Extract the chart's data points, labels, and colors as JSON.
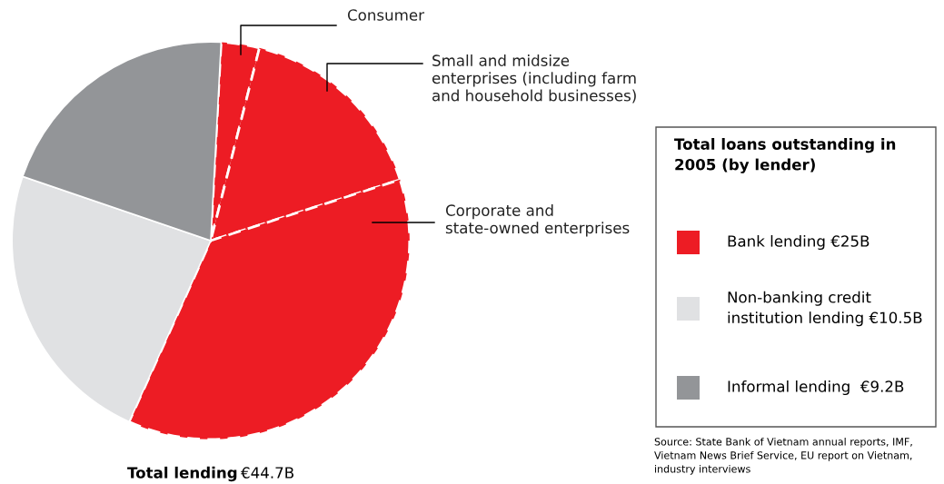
{
  "chart_data": {
    "type": "pie",
    "categories": [
      "Consumer",
      "Small and midsize\nenterprises (including farm\nand household businesses)",
      "Corporate and\nstate-owned enterprises",
      "Non-banking credit\ninstitution lending €10.5B",
      "Informal lending  €9.2B"
    ],
    "values": [
      3.1,
      16.1,
      36.7,
      23.5,
      20.6
    ],
    "colors": [
      "#ed1c24",
      "#ed1c24",
      "#ed1c24",
      "#e0e1e3",
      "#939598"
    ],
    "legend": "right",
    "legend_title": "Total loans outstanding in\n2005 (by lender)",
    "annotations": [
      "Bank lending €25B",
      "Total lending",
      "€44.7B",
      "Source: State Bank of Vietnam annual reports, IMF,\nVietnam News Brief Service, EU report on Vietnam,\nindustry interviews"
    ]
  }
}
